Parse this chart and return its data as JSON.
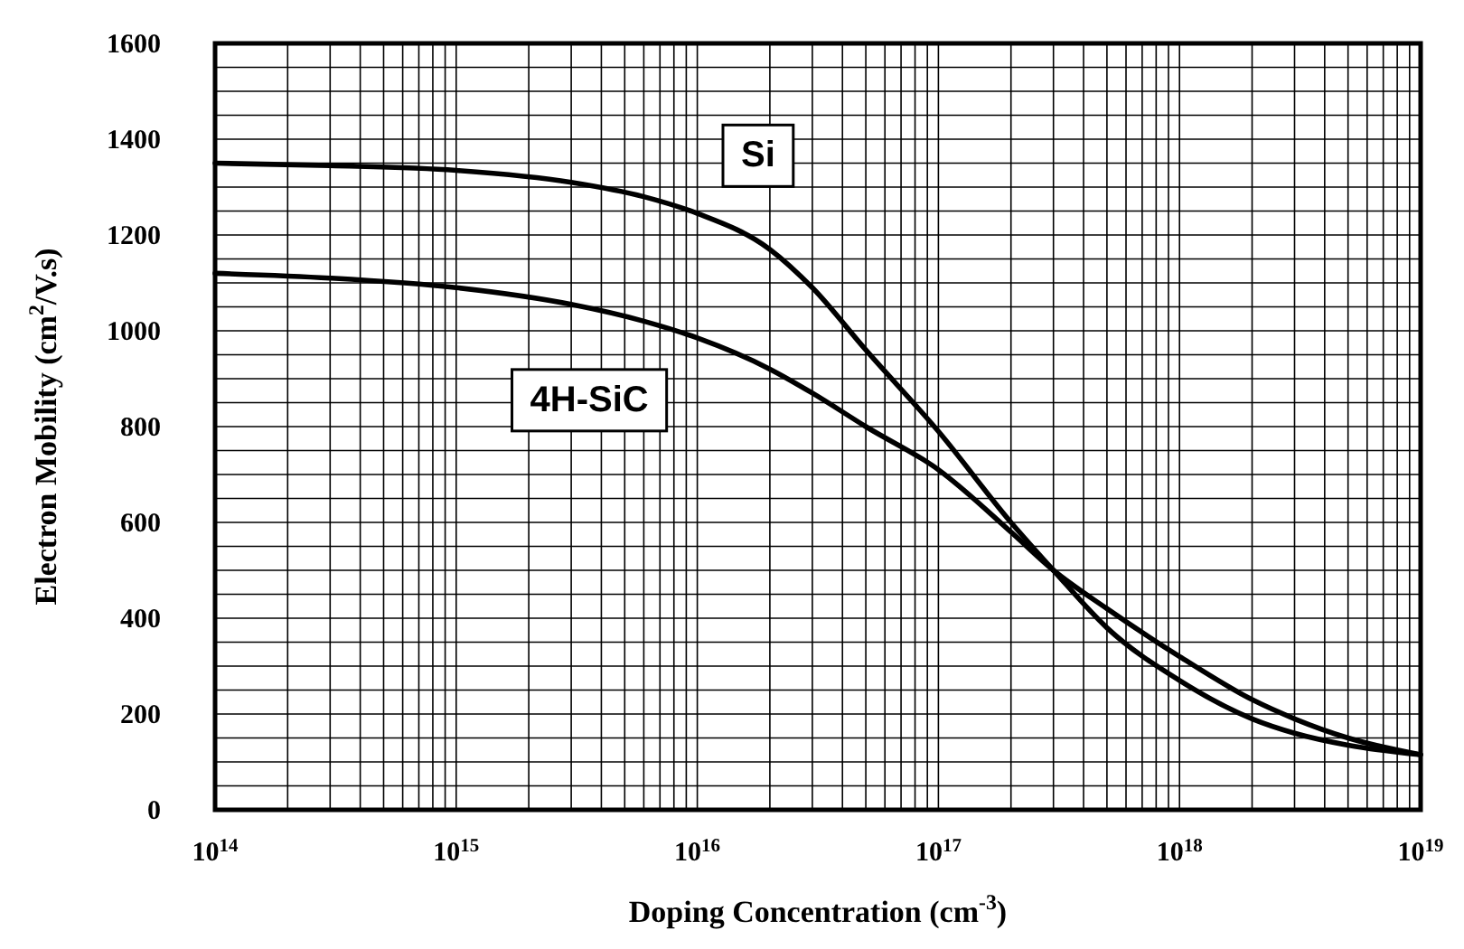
{
  "chart_data": {
    "type": "line",
    "xlabel": "Doping Concentration  (cm$^{-3}$)",
    "ylabel": "Electron Mobility  (cm$^{2}$/V.s)",
    "log": "x",
    "grid": true,
    "line_style": "solid",
    "marker": "none",
    "xlim": [
      100000000000000.0,
      1e+19
    ],
    "xticks": [
      {
        "value": 100000000000000.0,
        "label": "10$^{14}$"
      },
      {
        "value": 1000000000000000.0,
        "label": "10$^{15}$"
      },
      {
        "value": 1e+16,
        "label": "10$^{16}$"
      },
      {
        "value": 1e+17,
        "label": "10$^{17}$"
      },
      {
        "value": 1e+18,
        "label": "10$^{18}$"
      },
      {
        "value": 1e+19,
        "label": "10$^{19}$"
      }
    ],
    "ylim": [
      0,
      1600
    ],
    "yticks": [
      0,
      200,
      400,
      600,
      800,
      1000,
      1200,
      1400,
      1600
    ],
    "x": [
      100000000000000.0,
      300000000000000.0,
      1000000000000000.0,
      3000000000000000.0,
      6000000000000000.0,
      1e+16,
      2e+16,
      3e+16,
      5e+16,
      1e+17,
      2e+17,
      3e+17,
      5e+17,
      1e+18,
      2e+18,
      3e+18,
      5e+18,
      1e+19
    ],
    "series": [
      {
        "name": "Si",
        "color": "#000000",
        "values": [
          1350,
          1345,
          1335,
          1310,
          1280,
          1245,
          1170,
          1090,
          960,
          790,
          600,
          500,
          380,
          270,
          190,
          160,
          135,
          115
        ]
      },
      {
        "name": "4H-SiC",
        "color": "#000000",
        "values": [
          1120,
          1110,
          1090,
          1055,
          1020,
          985,
          920,
          870,
          800,
          710,
          580,
          500,
          420,
          320,
          230,
          190,
          150,
          115
        ]
      }
    ]
  }
}
